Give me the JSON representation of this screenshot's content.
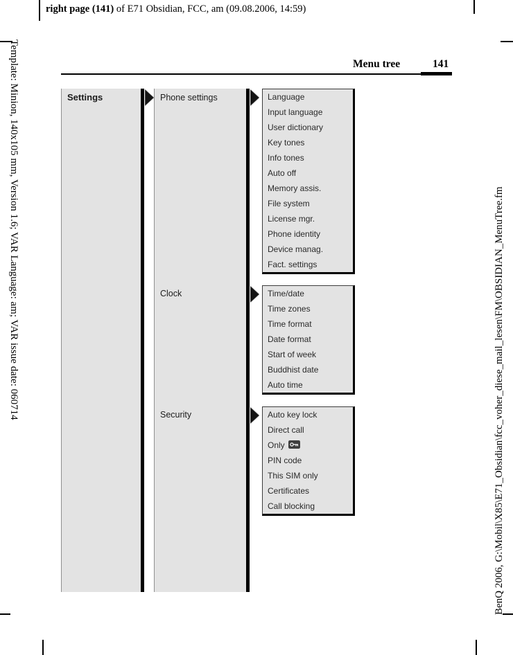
{
  "print_header": {
    "bold_part": "right page (141)",
    "rest_part": " of E71 Obsidian, FCC, am (09.08.2006, 14:59)"
  },
  "margin_notes": {
    "left": "Template: Minion, 140x105 mm, Version 1.6; VAR Language: am; VAR issue date: 060714",
    "right": "BenQ 2006, G:\\Mobil\\X85\\E71_Obsidian\\fcc_voher_diese_mail_lesen\\FM\\OBSIDIAN_MenuTree.fm"
  },
  "page_header": {
    "section_title": "Menu tree",
    "page_number": "141"
  },
  "menu_tree": {
    "root": {
      "label": "Settings"
    },
    "sections": [
      {
        "label": "Phone settings",
        "items": [
          {
            "label": "Language"
          },
          {
            "label": "Input language"
          },
          {
            "label": "User dictionary"
          },
          {
            "label": "Key tones"
          },
          {
            "label": "Info tones"
          },
          {
            "label": "Auto off"
          },
          {
            "label": "Memory assis."
          },
          {
            "label": "File system"
          },
          {
            "label": "License mgr."
          },
          {
            "label": "Phone identity"
          },
          {
            "label": "Device manag."
          },
          {
            "label": "Fact. settings"
          }
        ]
      },
      {
        "label": "Clock",
        "items": [
          {
            "label": "Time/date"
          },
          {
            "label": "Time zones"
          },
          {
            "label": "Time format"
          },
          {
            "label": "Date format"
          },
          {
            "label": "Start of week"
          },
          {
            "label": "Buddhist date"
          },
          {
            "label": "Auto time"
          }
        ]
      },
      {
        "label": "Security",
        "items": [
          {
            "label": "Auto key lock"
          },
          {
            "label": "Direct call"
          },
          {
            "label": "Only",
            "icon": "key-icon"
          },
          {
            "label": "PIN code"
          },
          {
            "label": "This SIM only"
          },
          {
            "label": "Certificates"
          },
          {
            "label": "Call blocking"
          }
        ]
      }
    ]
  },
  "colors": {
    "box_fill": "#e3e3e3",
    "bar_black": "#000000",
    "box_border_gray": "#8f8f8f",
    "list_border_dark": "#3c3c3c",
    "key_badge_fill": "#3f3f3f"
  }
}
